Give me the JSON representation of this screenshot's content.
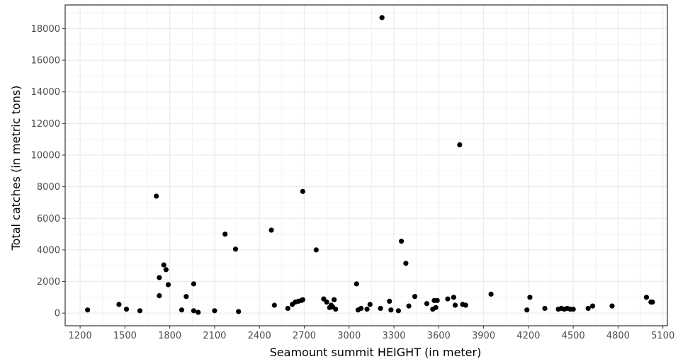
{
  "chart_data": {
    "type": "scatter",
    "xlabel": "Seamount summit HEIGHT (in meter)",
    "ylabel": "Total catches (in metric tons)",
    "xlim": [
      1100,
      5130
    ],
    "ylim": [
      -800,
      19500
    ],
    "xticks": [
      1200,
      1500,
      1800,
      2100,
      2400,
      2700,
      3000,
      3300,
      3600,
      3900,
      4200,
      4500,
      4800,
      5100
    ],
    "yticks": [
      0,
      2000,
      4000,
      6000,
      8000,
      10000,
      12000,
      14000,
      16000,
      18000
    ],
    "xtick_labels": [
      "1200",
      "1500",
      "1800",
      "2100",
      "2400",
      "2700",
      "3000",
      "3300",
      "3600",
      "3900",
      "4200",
      "4500",
      "4800",
      "5100"
    ],
    "ytick_labels": [
      "0",
      "2000",
      "4000",
      "6000",
      "8000",
      "10000",
      "12000",
      "14000",
      "16000",
      "18000"
    ],
    "grid": true,
    "point_color": "#000000",
    "points": [
      {
        "x": 1250,
        "y": 200
      },
      {
        "x": 1460,
        "y": 550
      },
      {
        "x": 1510,
        "y": 250
      },
      {
        "x": 1600,
        "y": 150
      },
      {
        "x": 1710,
        "y": 7400
      },
      {
        "x": 1730,
        "y": 2250
      },
      {
        "x": 1730,
        "y": 1100
      },
      {
        "x": 1760,
        "y": 3050
      },
      {
        "x": 1775,
        "y": 2750
      },
      {
        "x": 1790,
        "y": 1800
      },
      {
        "x": 1880,
        "y": 200
      },
      {
        "x": 1910,
        "y": 1050
      },
      {
        "x": 1960,
        "y": 1850
      },
      {
        "x": 1960,
        "y": 150
      },
      {
        "x": 1990,
        "y": 50
      },
      {
        "x": 2100,
        "y": 150
      },
      {
        "x": 2170,
        "y": 5000
      },
      {
        "x": 2240,
        "y": 4050
      },
      {
        "x": 2260,
        "y": 100
      },
      {
        "x": 2480,
        "y": 5250
      },
      {
        "x": 2500,
        "y": 500
      },
      {
        "x": 2590,
        "y": 300
      },
      {
        "x": 2620,
        "y": 550
      },
      {
        "x": 2640,
        "y": 700
      },
      {
        "x": 2660,
        "y": 750
      },
      {
        "x": 2680,
        "y": 800
      },
      {
        "x": 2690,
        "y": 850
      },
      {
        "x": 2690,
        "y": 7700
      },
      {
        "x": 2780,
        "y": 4000
      },
      {
        "x": 2830,
        "y": 900
      },
      {
        "x": 2850,
        "y": 700
      },
      {
        "x": 2870,
        "y": 350
      },
      {
        "x": 2880,
        "y": 500
      },
      {
        "x": 2890,
        "y": 400
      },
      {
        "x": 2900,
        "y": 850
      },
      {
        "x": 2910,
        "y": 250
      },
      {
        "x": 3050,
        "y": 1850
      },
      {
        "x": 3060,
        "y": 200
      },
      {
        "x": 3080,
        "y": 300
      },
      {
        "x": 3120,
        "y": 250
      },
      {
        "x": 3140,
        "y": 550
      },
      {
        "x": 3210,
        "y": 300
      },
      {
        "x": 3220,
        "y": 18700
      },
      {
        "x": 3270,
        "y": 750
      },
      {
        "x": 3280,
        "y": 200
      },
      {
        "x": 3330,
        "y": 150
      },
      {
        "x": 3350,
        "y": 4550
      },
      {
        "x": 3380,
        "y": 3150
      },
      {
        "x": 3400,
        "y": 450
      },
      {
        "x": 3440,
        "y": 1050
      },
      {
        "x": 3520,
        "y": 600
      },
      {
        "x": 3560,
        "y": 250
      },
      {
        "x": 3570,
        "y": 800
      },
      {
        "x": 3580,
        "y": 350
      },
      {
        "x": 3590,
        "y": 800
      },
      {
        "x": 3660,
        "y": 900
      },
      {
        "x": 3700,
        "y": 1000
      },
      {
        "x": 3710,
        "y": 500
      },
      {
        "x": 3740,
        "y": 10650
      },
      {
        "x": 3760,
        "y": 550
      },
      {
        "x": 3780,
        "y": 500
      },
      {
        "x": 3950,
        "y": 1200
      },
      {
        "x": 4190,
        "y": 200
      },
      {
        "x": 4210,
        "y": 1000
      },
      {
        "x": 4310,
        "y": 300
      },
      {
        "x": 4400,
        "y": 250
      },
      {
        "x": 4420,
        "y": 300
      },
      {
        "x": 4440,
        "y": 250
      },
      {
        "x": 4460,
        "y": 300
      },
      {
        "x": 4480,
        "y": 250
      },
      {
        "x": 4500,
        "y": 250
      },
      {
        "x": 4600,
        "y": 300
      },
      {
        "x": 4630,
        "y": 450
      },
      {
        "x": 4760,
        "y": 450
      },
      {
        "x": 4990,
        "y": 1000
      },
      {
        "x": 5020,
        "y": 700
      },
      {
        "x": 5030,
        "y": 700
      }
    ]
  }
}
